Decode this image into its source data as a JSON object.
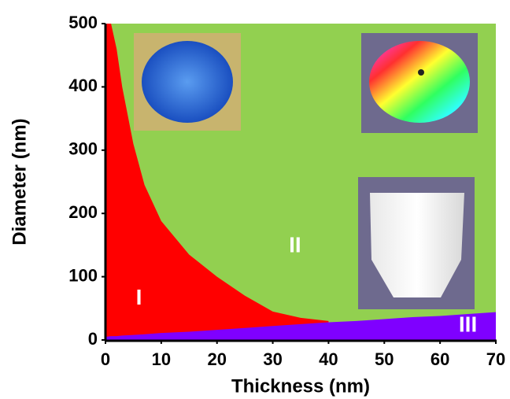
{
  "chart_data": {
    "type": "area",
    "xlabel": "Thickness (nm)",
    "ylabel": "Diameter (nm)",
    "x": [
      0,
      1,
      2,
      3,
      5,
      7,
      10,
      15,
      20,
      25,
      30,
      35,
      40,
      45,
      50,
      55,
      60,
      65,
      70
    ],
    "series": [
      {
        "name": "II",
        "color": "#92d050"
      },
      {
        "name": "I",
        "color": "#ff0000",
        "values": [
          500,
          500,
          460,
          400,
          310,
          245,
          188,
          135,
          100,
          70,
          45,
          35,
          30,
          null,
          null,
          null,
          null,
          null,
          null
        ]
      },
      {
        "name": "III",
        "color": "#7f00ff",
        "values": [
          5,
          6,
          6,
          7,
          8,
          9,
          11,
          13,
          16,
          19,
          22,
          25,
          28,
          30,
          33,
          36,
          38,
          41,
          44
        ]
      }
    ],
    "xlim": [
      0,
      70
    ],
    "ylim": [
      0,
      500
    ],
    "xticks": [
      0,
      10,
      20,
      30,
      40,
      50,
      60,
      70
    ],
    "yticks": [
      0,
      100,
      200,
      300,
      400,
      500
    ]
  }
}
